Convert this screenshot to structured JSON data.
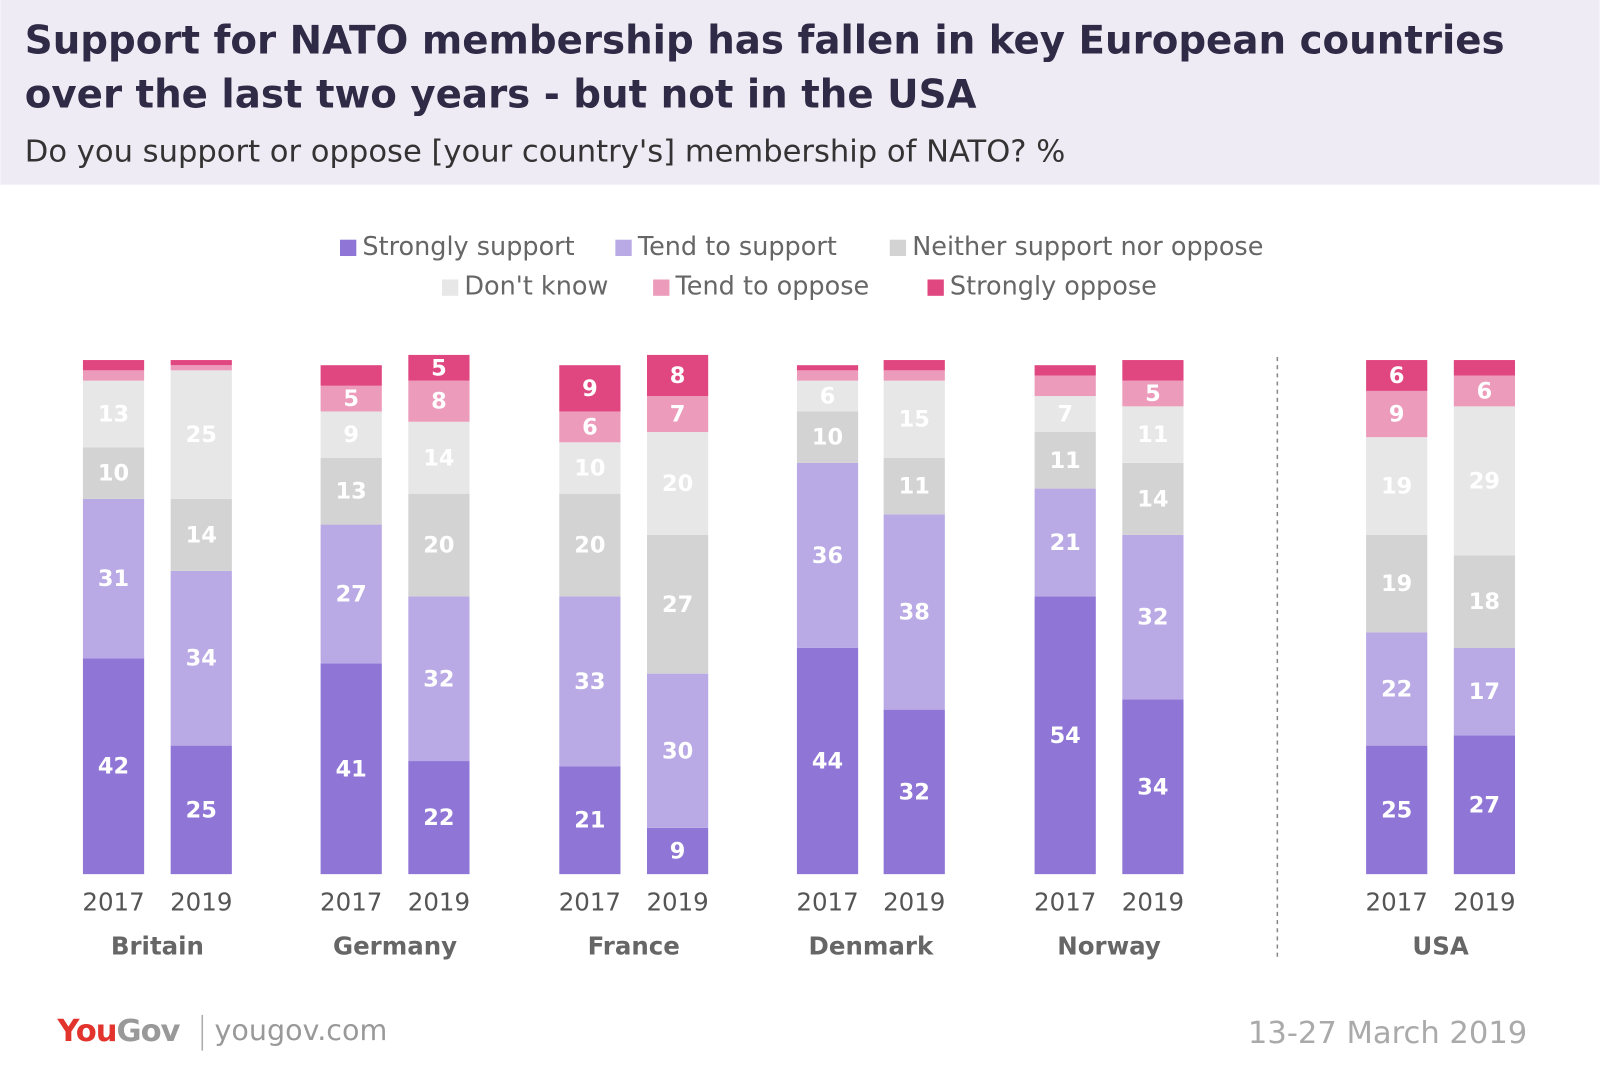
{
  "chart_data": {
    "type": "stacked_bar",
    "title": "Support for NATO membership has fallen in key European countries over the last two years - but not in the USA",
    "title_lines": [
      "Support for NATO membership has fallen in key European countries",
      "over the last two years - but not in the USA"
    ],
    "subtitle": "Do you support or oppose [your country's] membership of NATO? %",
    "categories": [
      "2017",
      "2019",
      "2017",
      "2019",
      "2017",
      "2019",
      "2017",
      "2019",
      "2017",
      "2019",
      "2017",
      "2019"
    ],
    "groups": [
      "Britain",
      "Germany",
      "France",
      "Denmark",
      "Norway",
      "USA"
    ],
    "ylim": [
      0,
      100
    ],
    "series": [
      {
        "name": "Strongly support",
        "color": "#8f76d6",
        "values": [
          42,
          25,
          41,
          22,
          21,
          9,
          44,
          32,
          54,
          34,
          25,
          27
        ]
      },
      {
        "name": "Tend to support",
        "color": "#b9aae5",
        "values": [
          31,
          34,
          27,
          32,
          33,
          30,
          36,
          38,
          21,
          32,
          22,
          17
        ]
      },
      {
        "name": "Neither support nor oppose",
        "color": "#d3d3d3",
        "values": [
          10,
          14,
          13,
          20,
          20,
          27,
          10,
          11,
          11,
          14,
          19,
          18
        ]
      },
      {
        "name": "Don't know",
        "color": "#e7e7e7",
        "values": [
          13,
          25,
          9,
          14,
          10,
          20,
          6,
          15,
          7,
          11,
          19,
          29
        ]
      },
      {
        "name": "Tend to oppose",
        "color": "#ec9bba",
        "values": [
          2,
          1,
          5,
          8,
          6,
          7,
          2,
          2,
          4,
          5,
          9,
          6
        ]
      },
      {
        "name": "Strongly oppose",
        "color": "#e0467f",
        "values": [
          2,
          1,
          4,
          5,
          9,
          8,
          1,
          2,
          2,
          4,
          6,
          3
        ]
      }
    ],
    "logo_parts": [
      "You",
      "Gov"
    ],
    "website": "yougov.com",
    "date": "13-27 March 2019"
  }
}
